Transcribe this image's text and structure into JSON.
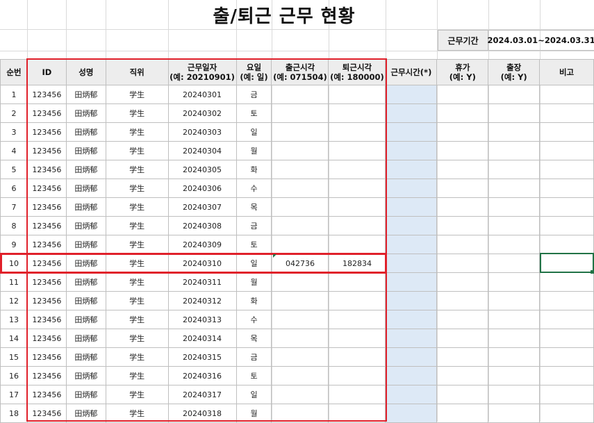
{
  "title": "출/퇴근 근무 현황",
  "period": {
    "label": "근무기간",
    "value": "2024.03.01~2024.03.31"
  },
  "headers": [
    {
      "line1": "순번",
      "line2": ""
    },
    {
      "line1": "ID",
      "line2": ""
    },
    {
      "line1": "성명",
      "line2": ""
    },
    {
      "line1": "직위",
      "line2": ""
    },
    {
      "line1": "근무일자",
      "line2": "(예: 20210901)"
    },
    {
      "line1": "요일",
      "line2": "(예: 일)"
    },
    {
      "line1": "출근시각",
      "line2": "(예: 071504)"
    },
    {
      "line1": "퇴근시각",
      "line2": "(예: 180000)"
    },
    {
      "line1": "근무시간(*)",
      "line2": ""
    },
    {
      "line1": "휴가",
      "line2": "(예: Y)"
    },
    {
      "line1": "출장",
      "line2": "(예: Y)"
    },
    {
      "line1": "비고",
      "line2": ""
    }
  ],
  "rows": [
    {
      "no": "1",
      "id": "123456",
      "name": "田炳郁",
      "pos": "学生",
      "date": "20240301",
      "day": "금",
      "in": "",
      "out": ""
    },
    {
      "no": "2",
      "id": "123456",
      "name": "田炳郁",
      "pos": "学生",
      "date": "20240302",
      "day": "토",
      "in": "",
      "out": ""
    },
    {
      "no": "3",
      "id": "123456",
      "name": "田炳郁",
      "pos": "学生",
      "date": "20240303",
      "day": "일",
      "in": "",
      "out": ""
    },
    {
      "no": "4",
      "id": "123456",
      "name": "田炳郁",
      "pos": "学生",
      "date": "20240304",
      "day": "월",
      "in": "",
      "out": ""
    },
    {
      "no": "5",
      "id": "123456",
      "name": "田炳郁",
      "pos": "学生",
      "date": "20240305",
      "day": "화",
      "in": "",
      "out": ""
    },
    {
      "no": "6",
      "id": "123456",
      "name": "田炳郁",
      "pos": "学生",
      "date": "20240306",
      "day": "수",
      "in": "",
      "out": ""
    },
    {
      "no": "7",
      "id": "123456",
      "name": "田炳郁",
      "pos": "学生",
      "date": "20240307",
      "day": "목",
      "in": "",
      "out": ""
    },
    {
      "no": "8",
      "id": "123456",
      "name": "田炳郁",
      "pos": "学生",
      "date": "20240308",
      "day": "금",
      "in": "",
      "out": ""
    },
    {
      "no": "9",
      "id": "123456",
      "name": "田炳郁",
      "pos": "学生",
      "date": "20240309",
      "day": "토",
      "in": "",
      "out": ""
    },
    {
      "no": "10",
      "id": "123456",
      "name": "田炳郁",
      "pos": "学生",
      "date": "20240310",
      "day": "일",
      "in": "042736",
      "out": "182834"
    },
    {
      "no": "11",
      "id": "123456",
      "name": "田炳郁",
      "pos": "学生",
      "date": "20240311",
      "day": "월",
      "in": "",
      "out": ""
    },
    {
      "no": "12",
      "id": "123456",
      "name": "田炳郁",
      "pos": "学生",
      "date": "20240312",
      "day": "화",
      "in": "",
      "out": ""
    },
    {
      "no": "13",
      "id": "123456",
      "name": "田炳郁",
      "pos": "学生",
      "date": "20240313",
      "day": "수",
      "in": "",
      "out": ""
    },
    {
      "no": "14",
      "id": "123456",
      "name": "田炳郁",
      "pos": "学生",
      "date": "20240314",
      "day": "목",
      "in": "",
      "out": ""
    },
    {
      "no": "15",
      "id": "123456",
      "name": "田炳郁",
      "pos": "学生",
      "date": "20240315",
      "day": "금",
      "in": "",
      "out": ""
    },
    {
      "no": "16",
      "id": "123456",
      "name": "田炳郁",
      "pos": "学生",
      "date": "20240316",
      "day": "토",
      "in": "",
      "out": ""
    },
    {
      "no": "17",
      "id": "123456",
      "name": "田炳郁",
      "pos": "学生",
      "date": "20240317",
      "day": "일",
      "in": "",
      "out": ""
    },
    {
      "no": "18",
      "id": "123456",
      "name": "田炳郁",
      "pos": "学生",
      "date": "20240318",
      "day": "월",
      "in": "",
      "out": ""
    }
  ],
  "colors": {
    "highlight_border": "#e0202a",
    "worktime_fill": "#dde9f6",
    "header_fill": "#ededed",
    "selection": "#217346"
  }
}
